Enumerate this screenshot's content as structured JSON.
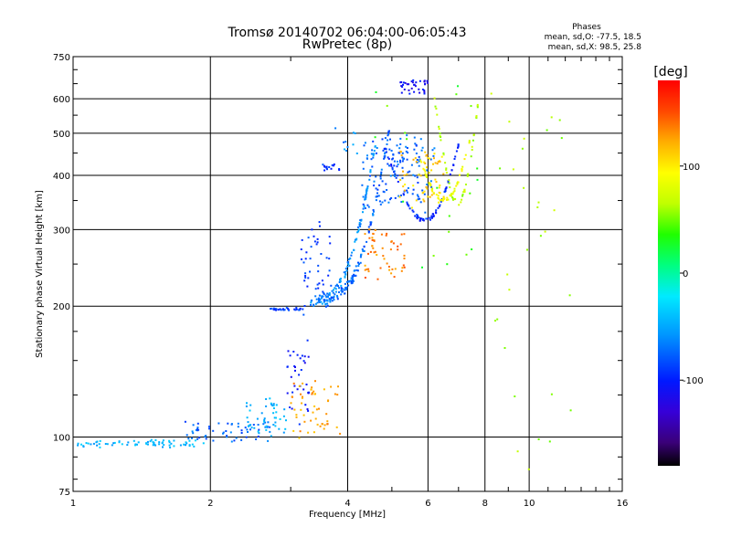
{
  "chart_data": {
    "type": "scatter",
    "title": "Tromsø 20140702 06:04:00-06:05:43",
    "subtitle": "RwPretec (8p)",
    "xlabel": "Frequency [MHz]",
    "ylabel": "Stationary phase Virtual Height [km]",
    "xscale": "log2",
    "yscale": "log",
    "xlim": [
      1,
      16
    ],
    "ylim": [
      75,
      750
    ],
    "x_ticks": [
      1,
      2,
      4,
      6,
      8,
      10,
      16
    ],
    "x_tick_labels": [
      "1",
      "2",
      "4",
      "6",
      "8",
      "10",
      "16"
    ],
    "y_ticks": [
      75,
      100,
      200,
      300,
      400,
      500,
      600,
      750
    ],
    "y_tick_labels": [
      "75",
      "100",
      "200",
      "300",
      "400",
      "500",
      "600",
      "750"
    ],
    "grid": true,
    "legend": {
      "title": "Phases",
      "lines": [
        "mean, sd,O: -77.5, 18.5",
        "mean, sd,X:  98.5, 25.8"
      ]
    },
    "colorbar": {
      "label": "[deg]",
      "min": -180,
      "max": 180,
      "ticks": [
        100,
        0,
        -100
      ],
      "tick_labels": [
        "100",
        "0",
        "-100"
      ],
      "colormap": "rainbow"
    },
    "traces": [
      {
        "x0": 1.0,
        "x1": 1.95,
        "y0": 95,
        "y1": 98,
        "shape": "flat",
        "phase": -45,
        "n": 70,
        "spread": 1.5
      },
      {
        "x0": 1.75,
        "x1": 2.7,
        "y0": 98,
        "y1": 108,
        "shape": "flat",
        "phase": -75,
        "n": 60,
        "spread": 3
      },
      {
        "x0": 2.4,
        "x1": 2.95,
        "y0": 102,
        "y1": 122,
        "shape": "flat",
        "phase": -45,
        "n": 45,
        "spread": 5
      },
      {
        "x0": 2.95,
        "x1": 3.3,
        "y0": 110,
        "y1": 165,
        "shape": "flat",
        "phase": -105,
        "n": 35,
        "spread": 18
      },
      {
        "x0": 3.0,
        "x1": 3.85,
        "y0": 100,
        "y1": 132,
        "shape": "flat",
        "phase": 125,
        "n": 55,
        "spread": 8
      },
      {
        "x0": 2.7,
        "x1": 3.2,
        "y0": 196,
        "y1": 198,
        "shape": "flat",
        "phase": -85,
        "n": 30,
        "spread": 2
      },
      {
        "x0": 3.15,
        "x1": 3.7,
        "y0": 200,
        "y1": 300,
        "shape": "flat",
        "phase": -90,
        "n": 45,
        "spread": 45
      },
      {
        "x0": 3.3,
        "x1": 4.6,
        "y0": 205,
        "y1": 470,
        "shape": "cusp",
        "phase": -60,
        "n": 120,
        "spread": 12
      },
      {
        "x0": 3.5,
        "x1": 4.95,
        "y0": 210,
        "y1": 520,
        "shape": "cusp",
        "phase": -75,
        "n": 120,
        "spread": 12
      },
      {
        "x0": 3.5,
        "x1": 3.85,
        "y0": 412,
        "y1": 425,
        "shape": "flat",
        "phase": -90,
        "n": 15,
        "spread": 4
      },
      {
        "x0": 3.75,
        "x1": 4.2,
        "y0": 440,
        "y1": 520,
        "shape": "flat",
        "phase": -60,
        "n": 10,
        "spread": 8
      },
      {
        "x0": 4.35,
        "x1": 5.35,
        "y0": 230,
        "y1": 300,
        "shape": "flat",
        "phase": 135,
        "n": 55,
        "spread": 12
      },
      {
        "x0": 4.3,
        "x1": 6.2,
        "y0": 330,
        "y1": 480,
        "shape": "flat",
        "phase": -75,
        "n": 140,
        "spread": 45
      },
      {
        "x0": 4.8,
        "x1": 7.0,
        "y0": 315,
        "y1": 470,
        "shape": "valley",
        "phase": -95,
        "n": 80,
        "spread": 6
      },
      {
        "x0": 5.2,
        "x1": 6.5,
        "y0": 345,
        "y1": 450,
        "shape": "flat",
        "phase": 110,
        "n": 60,
        "spread": 25
      },
      {
        "x0": 5.6,
        "x1": 7.4,
        "y0": 350,
        "y1": 480,
        "shape": "valley",
        "phase": 85,
        "n": 60,
        "spread": 8
      },
      {
        "x0": 6.2,
        "x1": 7.75,
        "y0": 345,
        "y1": 600,
        "shape": "valley",
        "phase": 65,
        "n": 50,
        "spread": 10
      },
      {
        "x0": 5.2,
        "x1": 6.0,
        "y0": 620,
        "y1": 660,
        "shape": "flat",
        "phase": -110,
        "n": 35,
        "spread": 8
      },
      {
        "x0": 4.5,
        "x1": 7.8,
        "y0": 230,
        "y1": 650,
        "shape": "scatter",
        "phase": 40,
        "n": 20,
        "spread": 0
      },
      {
        "x0": 8.2,
        "x1": 12.5,
        "y0": 82,
        "y1": 640,
        "shape": "scatter",
        "phase": 60,
        "n": 30,
        "spread": 0
      }
    ]
  }
}
